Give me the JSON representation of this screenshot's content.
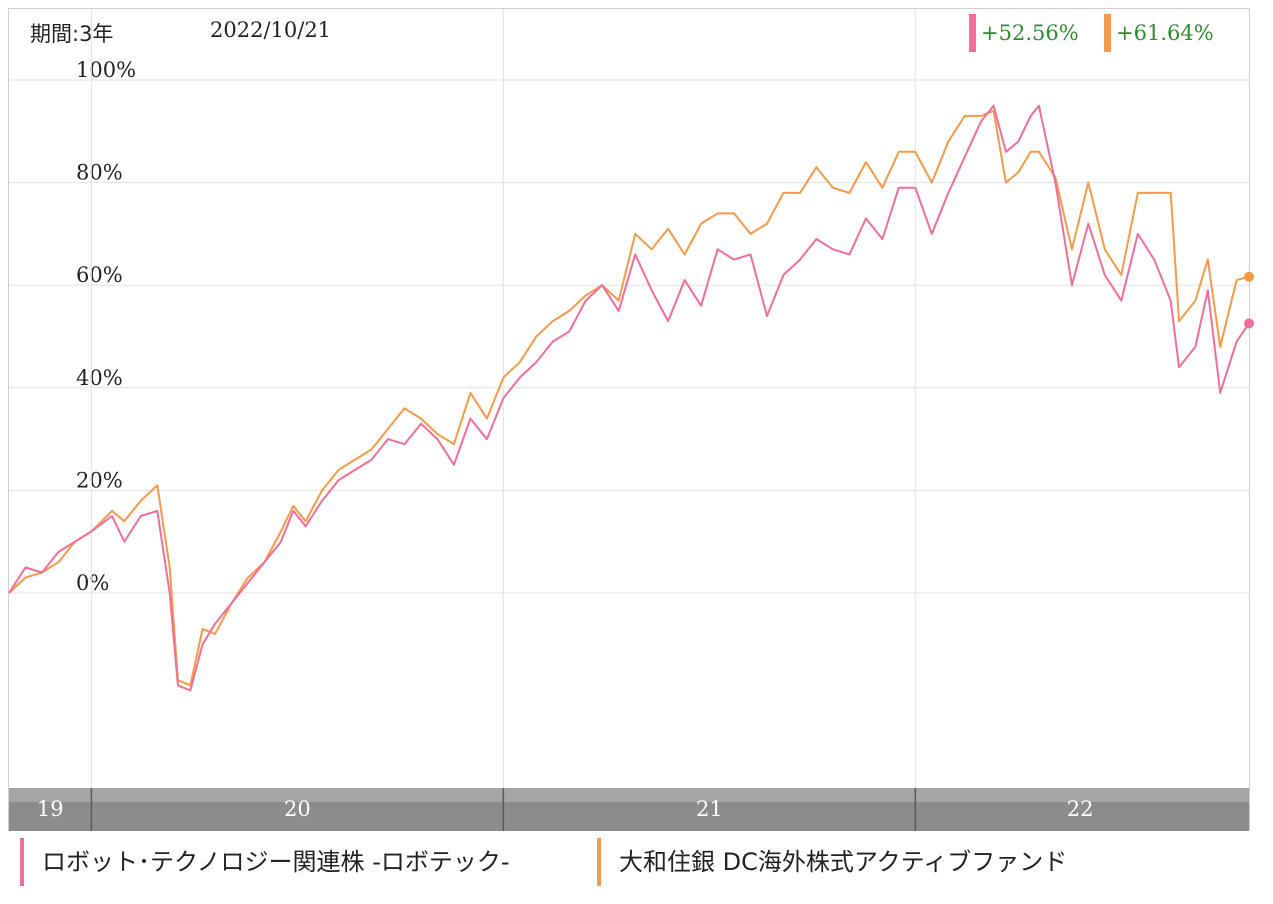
{
  "period": {
    "label": "期間:3年",
    "date": "2022/10/21"
  },
  "returns": [
    {
      "value": "+52.56%",
      "color": "#f06e9a"
    },
    {
      "value": "+61.64%",
      "color": "#f59a4a"
    }
  ],
  "legend": [
    {
      "name": "ロボット･テクノロジー関連株 -ロボテック-",
      "color": "#f06e9a"
    },
    {
      "name": "大和住銀 DC海外株式アクティブファンド",
      "color": "#f59a4a"
    }
  ],
  "chart_data": {
    "type": "line",
    "y_ticks": [
      "100%",
      "80%",
      "60%",
      "40%",
      "20%",
      "0%"
    ],
    "y_tick_values": [
      100,
      80,
      60,
      40,
      20,
      0
    ],
    "ylim": [
      -38,
      100
    ],
    "xlim": [
      2019.8,
      2022.81
    ],
    "x_ticks": [
      "19",
      "20",
      "21",
      "22"
    ],
    "grid": true,
    "series": [
      {
        "name": "ロボット･テクノロジー関連株 -ロボテック-",
        "color": "#f06e9a",
        "points": [
          [
            2019.8,
            0
          ],
          [
            2019.84,
            5
          ],
          [
            2019.88,
            4
          ],
          [
            2019.92,
            8
          ],
          [
            2019.96,
            10
          ],
          [
            2020.0,
            12
          ],
          [
            2020.05,
            15
          ],
          [
            2020.08,
            10
          ],
          [
            2020.12,
            15
          ],
          [
            2020.16,
            16
          ],
          [
            2020.19,
            0
          ],
          [
            2020.21,
            -18
          ],
          [
            2020.24,
            -19
          ],
          [
            2020.27,
            -10
          ],
          [
            2020.3,
            -6
          ],
          [
            2020.34,
            -2
          ],
          [
            2020.38,
            2
          ],
          [
            2020.42,
            6
          ],
          [
            2020.46,
            10
          ],
          [
            2020.49,
            16
          ],
          [
            2020.52,
            13
          ],
          [
            2020.56,
            18
          ],
          [
            2020.6,
            22
          ],
          [
            2020.64,
            24
          ],
          [
            2020.68,
            26
          ],
          [
            2020.72,
            30
          ],
          [
            2020.76,
            29
          ],
          [
            2020.8,
            33
          ],
          [
            2020.84,
            30
          ],
          [
            2020.88,
            25
          ],
          [
            2020.92,
            34
          ],
          [
            2020.96,
            30
          ],
          [
            2021.0,
            38
          ],
          [
            2021.04,
            42
          ],
          [
            2021.08,
            45
          ],
          [
            2021.12,
            49
          ],
          [
            2021.16,
            51
          ],
          [
            2021.2,
            57
          ],
          [
            2021.24,
            60
          ],
          [
            2021.28,
            55
          ],
          [
            2021.32,
            66
          ],
          [
            2021.36,
            59
          ],
          [
            2021.4,
            53
          ],
          [
            2021.44,
            61
          ],
          [
            2021.48,
            56
          ],
          [
            2021.52,
            67
          ],
          [
            2021.56,
            65
          ],
          [
            2021.6,
            66
          ],
          [
            2021.64,
            54
          ],
          [
            2021.68,
            62
          ],
          [
            2021.72,
            65
          ],
          [
            2021.76,
            69
          ],
          [
            2021.8,
            67
          ],
          [
            2021.84,
            66
          ],
          [
            2021.88,
            73
          ],
          [
            2021.92,
            69
          ],
          [
            2021.96,
            79
          ],
          [
            2022.0,
            79
          ],
          [
            2022.04,
            70
          ],
          [
            2022.08,
            78
          ],
          [
            2022.12,
            85
          ],
          [
            2022.16,
            92
          ],
          [
            2022.19,
            95
          ],
          [
            2022.22,
            86
          ],
          [
            2022.25,
            88
          ],
          [
            2022.28,
            93
          ],
          [
            2022.3,
            95
          ],
          [
            2022.34,
            80
          ],
          [
            2022.38,
            60
          ],
          [
            2022.42,
            72
          ],
          [
            2022.46,
            62
          ],
          [
            2022.5,
            57
          ],
          [
            2022.54,
            70
          ],
          [
            2022.58,
            65
          ],
          [
            2022.62,
            57
          ],
          [
            2022.64,
            44
          ],
          [
            2022.68,
            48
          ],
          [
            2022.71,
            59
          ],
          [
            2022.74,
            39
          ],
          [
            2022.78,
            49
          ],
          [
            2022.81,
            52.56
          ]
        ]
      },
      {
        "name": "大和住銀 DC海外株式アクティブファンド",
        "color": "#f59a4a",
        "points": [
          [
            2019.8,
            0
          ],
          [
            2019.84,
            3
          ],
          [
            2019.88,
            4
          ],
          [
            2019.92,
            6
          ],
          [
            2019.96,
            10
          ],
          [
            2020.0,
            12
          ],
          [
            2020.05,
            16
          ],
          [
            2020.08,
            14
          ],
          [
            2020.12,
            18
          ],
          [
            2020.16,
            21
          ],
          [
            2020.19,
            5
          ],
          [
            2020.21,
            -17
          ],
          [
            2020.24,
            -18
          ],
          [
            2020.27,
            -7
          ],
          [
            2020.3,
            -8
          ],
          [
            2020.34,
            -2
          ],
          [
            2020.38,
            3
          ],
          [
            2020.42,
            6
          ],
          [
            2020.46,
            12
          ],
          [
            2020.49,
            17
          ],
          [
            2020.52,
            14
          ],
          [
            2020.56,
            20
          ],
          [
            2020.6,
            24
          ],
          [
            2020.64,
            26
          ],
          [
            2020.68,
            28
          ],
          [
            2020.72,
            32
          ],
          [
            2020.76,
            36
          ],
          [
            2020.8,
            34
          ],
          [
            2020.84,
            31
          ],
          [
            2020.88,
            29
          ],
          [
            2020.92,
            39
          ],
          [
            2020.96,
            34
          ],
          [
            2021.0,
            42
          ],
          [
            2021.04,
            45
          ],
          [
            2021.08,
            50
          ],
          [
            2021.12,
            53
          ],
          [
            2021.16,
            55
          ],
          [
            2021.2,
            58
          ],
          [
            2021.24,
            60
          ],
          [
            2021.28,
            57
          ],
          [
            2021.32,
            70
          ],
          [
            2021.36,
            67
          ],
          [
            2021.4,
            71
          ],
          [
            2021.44,
            66
          ],
          [
            2021.48,
            72
          ],
          [
            2021.52,
            74
          ],
          [
            2021.56,
            74
          ],
          [
            2021.6,
            70
          ],
          [
            2021.64,
            72
          ],
          [
            2021.68,
            78
          ],
          [
            2021.72,
            78
          ],
          [
            2021.76,
            83
          ],
          [
            2021.8,
            79
          ],
          [
            2021.84,
            78
          ],
          [
            2021.88,
            84
          ],
          [
            2021.92,
            79
          ],
          [
            2021.96,
            86
          ],
          [
            2022.0,
            86
          ],
          [
            2022.04,
            80
          ],
          [
            2022.08,
            88
          ],
          [
            2022.12,
            93
          ],
          [
            2022.16,
            93
          ],
          [
            2022.19,
            94
          ],
          [
            2022.22,
            80
          ],
          [
            2022.25,
            82
          ],
          [
            2022.28,
            86
          ],
          [
            2022.3,
            86
          ],
          [
            2022.34,
            81
          ],
          [
            2022.38,
            67
          ],
          [
            2022.42,
            80
          ],
          [
            2022.46,
            67
          ],
          [
            2022.5,
            62
          ],
          [
            2022.54,
            78
          ],
          [
            2022.58,
            78
          ],
          [
            2022.62,
            78
          ],
          [
            2022.64,
            53
          ],
          [
            2022.68,
            57
          ],
          [
            2022.71,
            65
          ],
          [
            2022.74,
            48
          ],
          [
            2022.78,
            61
          ],
          [
            2022.81,
            61.64
          ]
        ]
      }
    ]
  }
}
